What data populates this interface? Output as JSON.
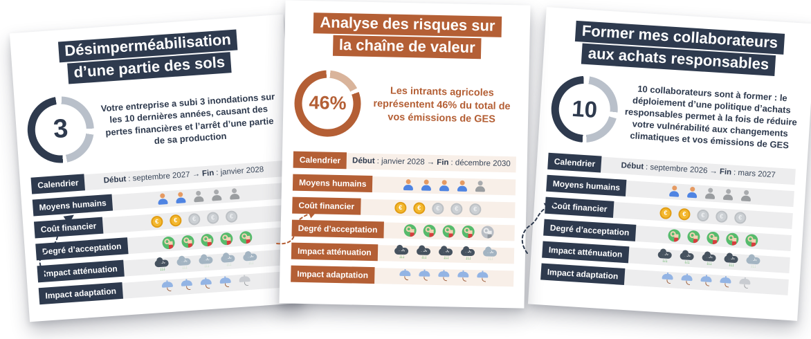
{
  "colors": {
    "navy": "#2e3a4e",
    "rust": "#b45f35",
    "ring_gray": "#b9c0ca",
    "ring_tan": "#d9b49b",
    "band_gray": "#ededee",
    "band_cream": "#f8efe8",
    "calendar_text": "#3a475a",
    "coin_gold": "#f4b82e",
    "ok_green": "#56bb6c",
    "cloud_dark": "#46525f",
    "umbrella_blue": "#93b4e4"
  },
  "icon_glyphs": {
    "coin_symbol": "€",
    "cloud_text": "CO₂",
    "cloud_arrows": "↓↓↓"
  },
  "cards": [
    {
      "theme": "navy",
      "title_lines": [
        "Désimperméabilisation",
        "d’une partie des sols"
      ],
      "circle_value": "3",
      "description": "Votre entreprise a subi 3 inondations sur les 10 dernières années, causant des pertes financières et l’arrêt d’une partie de sa production",
      "calendar": {
        "label": "Calendrier",
        "debut_label": "Début",
        "debut_value": ": septembre 2027",
        "arrow": "→",
        "fin_label": "Fin",
        "fin_value": ": janvier 2028"
      },
      "rows": [
        {
          "label": "Moyens humains",
          "icon": "person",
          "active": 2,
          "total": 5
        },
        {
          "label": "Coût financier",
          "icon": "coin",
          "active": 2,
          "total": 5
        },
        {
          "label": "Degré d’acceptation",
          "icon": "ok",
          "active": 5,
          "total": 5
        },
        {
          "label": "Impact atténuation",
          "icon": "cloud",
          "active": 1,
          "total": 5
        },
        {
          "label": "Impact adaptation",
          "icon": "umbrella",
          "active": 4,
          "total": 5
        }
      ]
    },
    {
      "theme": "rust",
      "title_lines": [
        "Analyse des risques sur",
        "la chaîne de valeur"
      ],
      "circle_value": "46%",
      "description": "Les intrants agricoles représentent 46% du total de vos émissions de GES",
      "calendar": {
        "label": "Calendrier",
        "debut_label": "Début",
        "debut_value": ": janvier 2028",
        "arrow": "→",
        "fin_label": "Fin",
        "fin_value": ": décembre 2030"
      },
      "rows": [
        {
          "label": "Moyens humains",
          "icon": "person",
          "active": 4,
          "total": 5
        },
        {
          "label": "Coût financier",
          "icon": "coin",
          "active": 2,
          "total": 5
        },
        {
          "label": "Degré d’acceptation",
          "icon": "ok",
          "active": 4,
          "total": 5
        },
        {
          "label": "Impact atténuation",
          "icon": "cloud",
          "active": 4,
          "total": 5
        },
        {
          "label": "Impact adaptation",
          "icon": "umbrella",
          "active": 5,
          "total": 5
        }
      ]
    },
    {
      "theme": "navy",
      "title_lines": [
        "Former mes collaborateurs",
        "aux achats responsables"
      ],
      "circle_value": "10",
      "description": "10 collaborateurs sont à former : le déploiement d’une politique d’achats responsables permet à la fois de réduire votre vulnérabilité aux changements climatiques et vos émissions de GES",
      "calendar": {
        "label": "Calendrier",
        "debut_label": "Début",
        "debut_value": ": septembre 2026",
        "arrow": "→",
        "fin_label": "Fin",
        "fin_value": ": mars 2027"
      },
      "rows": [
        {
          "label": "Moyens humains",
          "icon": "person",
          "active": 2,
          "total": 5
        },
        {
          "label": "Coût financier",
          "icon": "coin",
          "active": 2,
          "total": 5
        },
        {
          "label": "Degré d’acceptation",
          "icon": "ok",
          "active": 5,
          "total": 5
        },
        {
          "label": "Impact atténuation",
          "icon": "cloud",
          "active": 4,
          "total": 5
        },
        {
          "label": "Impact adaptation",
          "icon": "umbrella",
          "active": 4,
          "total": 5
        }
      ]
    }
  ]
}
